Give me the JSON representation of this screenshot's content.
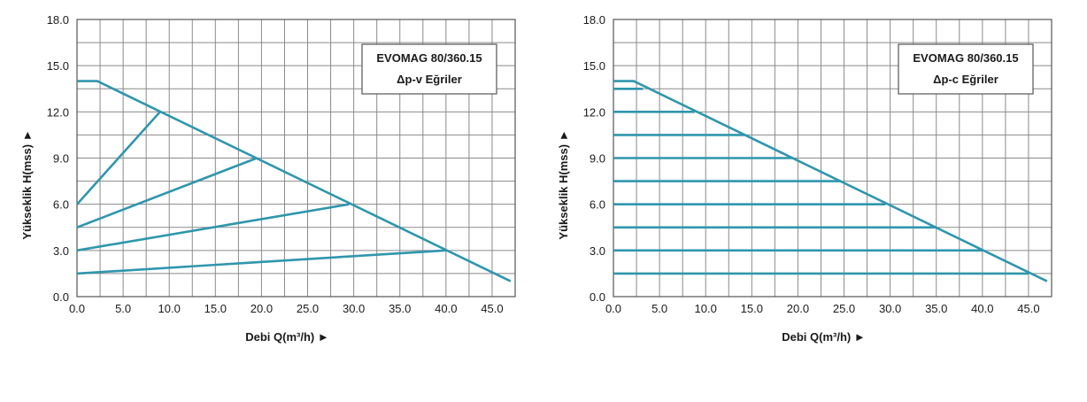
{
  "colors": {
    "curve": "#2f96ad",
    "grid": "#8a8a8a",
    "frame": "#555555",
    "text": "#1a1a1a"
  },
  "chart_data": [
    {
      "type": "line",
      "title": "EVOMAG 80/360.15",
      "subtitle": "Δp-v Eğriler",
      "xlabel": "Debi Q(m³/h) ►",
      "ylabel": "Yükseklik H(mss) ►",
      "xlim": [
        0,
        47.5
      ],
      "ylim": [
        0,
        18
      ],
      "xticks": [
        "0.0",
        "5.0",
        "10.0",
        "15.0",
        "20.0",
        "25.0",
        "30.0",
        "35.0",
        "40.0",
        "45.0"
      ],
      "yticks": [
        "0.0",
        "3.0",
        "6.0",
        "9.0",
        "12.0",
        "15.0",
        "18.0"
      ],
      "grid": true,
      "series": [
        {
          "points": [
            [
              0,
              14
            ],
            [
              2.2,
              14
            ],
            [
              47,
              1
            ]
          ]
        },
        {
          "points": [
            [
              0,
              6
            ],
            [
              9,
              12
            ]
          ]
        },
        {
          "points": [
            [
              0,
              4.5
            ],
            [
              19.5,
              9
            ]
          ]
        },
        {
          "points": [
            [
              0,
              3
            ],
            [
              29.5,
              6
            ]
          ]
        },
        {
          "points": [
            [
              0,
              1.5
            ],
            [
              40,
              3
            ]
          ]
        }
      ]
    },
    {
      "type": "line",
      "title": "EVOMAG 80/360.15",
      "subtitle": "Δp-c Eğriler",
      "xlabel": "Debi Q(m³/h) ►",
      "ylabel": "Yükseklik H(mss) ►",
      "xlim": [
        0,
        47.5
      ],
      "ylim": [
        0,
        18
      ],
      "xticks": [
        "0.0",
        "5.0",
        "10.0",
        "15.0",
        "20.0",
        "25.0",
        "30.0",
        "35.0",
        "40.0",
        "45.0"
      ],
      "yticks": [
        "0.0",
        "3.0",
        "6.0",
        "9.0",
        "12.0",
        "15.0",
        "18.0"
      ],
      "grid": true,
      "series": [
        {
          "points": [
            [
              0,
              14
            ],
            [
              2.2,
              14
            ],
            [
              47,
              1
            ]
          ]
        },
        {
          "points": [
            [
              0,
              13.5
            ],
            [
              3.2,
              13.5
            ]
          ]
        },
        {
          "points": [
            [
              0,
              12
            ],
            [
              8.8,
              12
            ]
          ]
        },
        {
          "points": [
            [
              0,
              10.5
            ],
            [
              14.2,
              10.5
            ]
          ]
        },
        {
          "points": [
            [
              0,
              9
            ],
            [
              19.5,
              9
            ]
          ]
        },
        {
          "points": [
            [
              0,
              7.5
            ],
            [
              24.7,
              7.5
            ]
          ]
        },
        {
          "points": [
            [
              0,
              6
            ],
            [
              29.5,
              6
            ]
          ]
        },
        {
          "points": [
            [
              0,
              4.5
            ],
            [
              35,
              4.5
            ]
          ]
        },
        {
          "points": [
            [
              0,
              3
            ],
            [
              40,
              3
            ]
          ]
        },
        {
          "points": [
            [
              0,
              1.5
            ],
            [
              45,
              1.5
            ]
          ]
        }
      ]
    }
  ]
}
